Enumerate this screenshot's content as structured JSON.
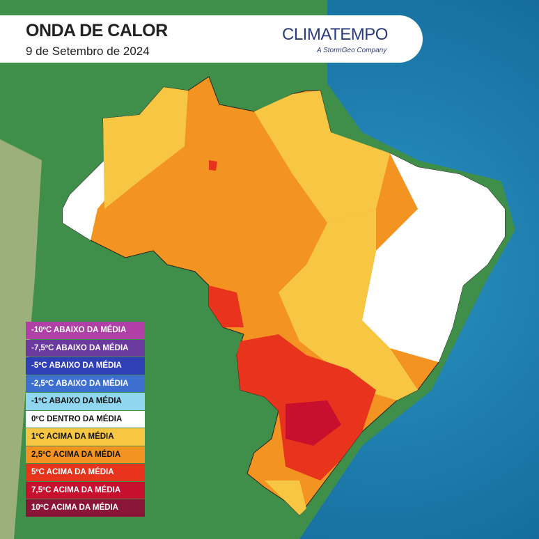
{
  "header": {
    "title": "ONDA DE CALOR",
    "subtitle": "9 de Setembro de 2024",
    "logo": "CLIMATEMPO",
    "logo_tagline": "A StormGeo Company"
  },
  "legend": {
    "items": [
      {
        "label": "-10ºC ABAIXO DA MÉDIA",
        "color": "#b03fa8"
      },
      {
        "label": "-7,5ºC ABAIXO DA MÉDIA",
        "color": "#6a3aa0"
      },
      {
        "label": "-5ºC ABAIXO DA MÉDIA",
        "color": "#2f3fb5"
      },
      {
        "label": "-2,5ºC ABAIXO DA MÉDIA",
        "color": "#3c6fd0"
      },
      {
        "label": "-1ºC ABAIXO DA MÉDIA",
        "color": "#8fd6f0"
      },
      {
        "label": "0ºC DENTRO DA MÉDIA",
        "color": "#ffffff"
      },
      {
        "label": "1ºC ACIMA DA MÉDIA",
        "color": "#f7c642"
      },
      {
        "label": "2,5ºC ACIMA DA MÉDIA",
        "color": "#f39321"
      },
      {
        "label": "5ºC ACIMA DA MÉDIA",
        "color": "#e8341d"
      },
      {
        "label": "7,5ºC ACIMA DA MÉDIA",
        "color": "#c8102e"
      },
      {
        "label": "10ºC ACIMA DA MÉDIA",
        "color": "#8b1538"
      }
    ]
  }
}
